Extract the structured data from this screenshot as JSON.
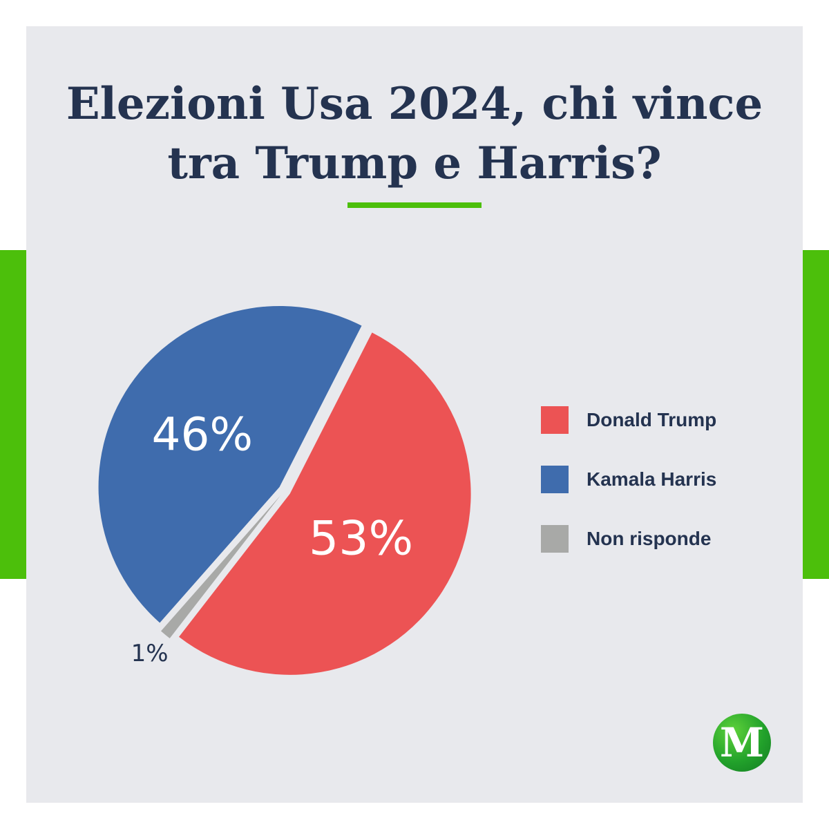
{
  "header": {
    "title": "Elezioni Usa 2024, chi vince\ntra Trump e Harris?"
  },
  "colors": {
    "accent_green": "#4cbf0b",
    "title_navy": "#243350",
    "panel_bg": "#e8e9ed"
  },
  "chart_data": {
    "type": "pie",
    "title": "Elezioni Usa 2024, chi vince tra Trump e Harris?",
    "slices": [
      {
        "label": "Donald Trump",
        "value": 53,
        "display": "53%",
        "color": "#ec5354"
      },
      {
        "label": "Kamala Harris",
        "value": 46,
        "display": "46%",
        "color": "#3f6cad"
      },
      {
        "label": "Non risponde",
        "value": 1,
        "display": "1%",
        "color": "#a8a9a7"
      }
    ],
    "legend_position": "right"
  },
  "logo": {
    "letter": "M",
    "icon": "brand-logo"
  }
}
